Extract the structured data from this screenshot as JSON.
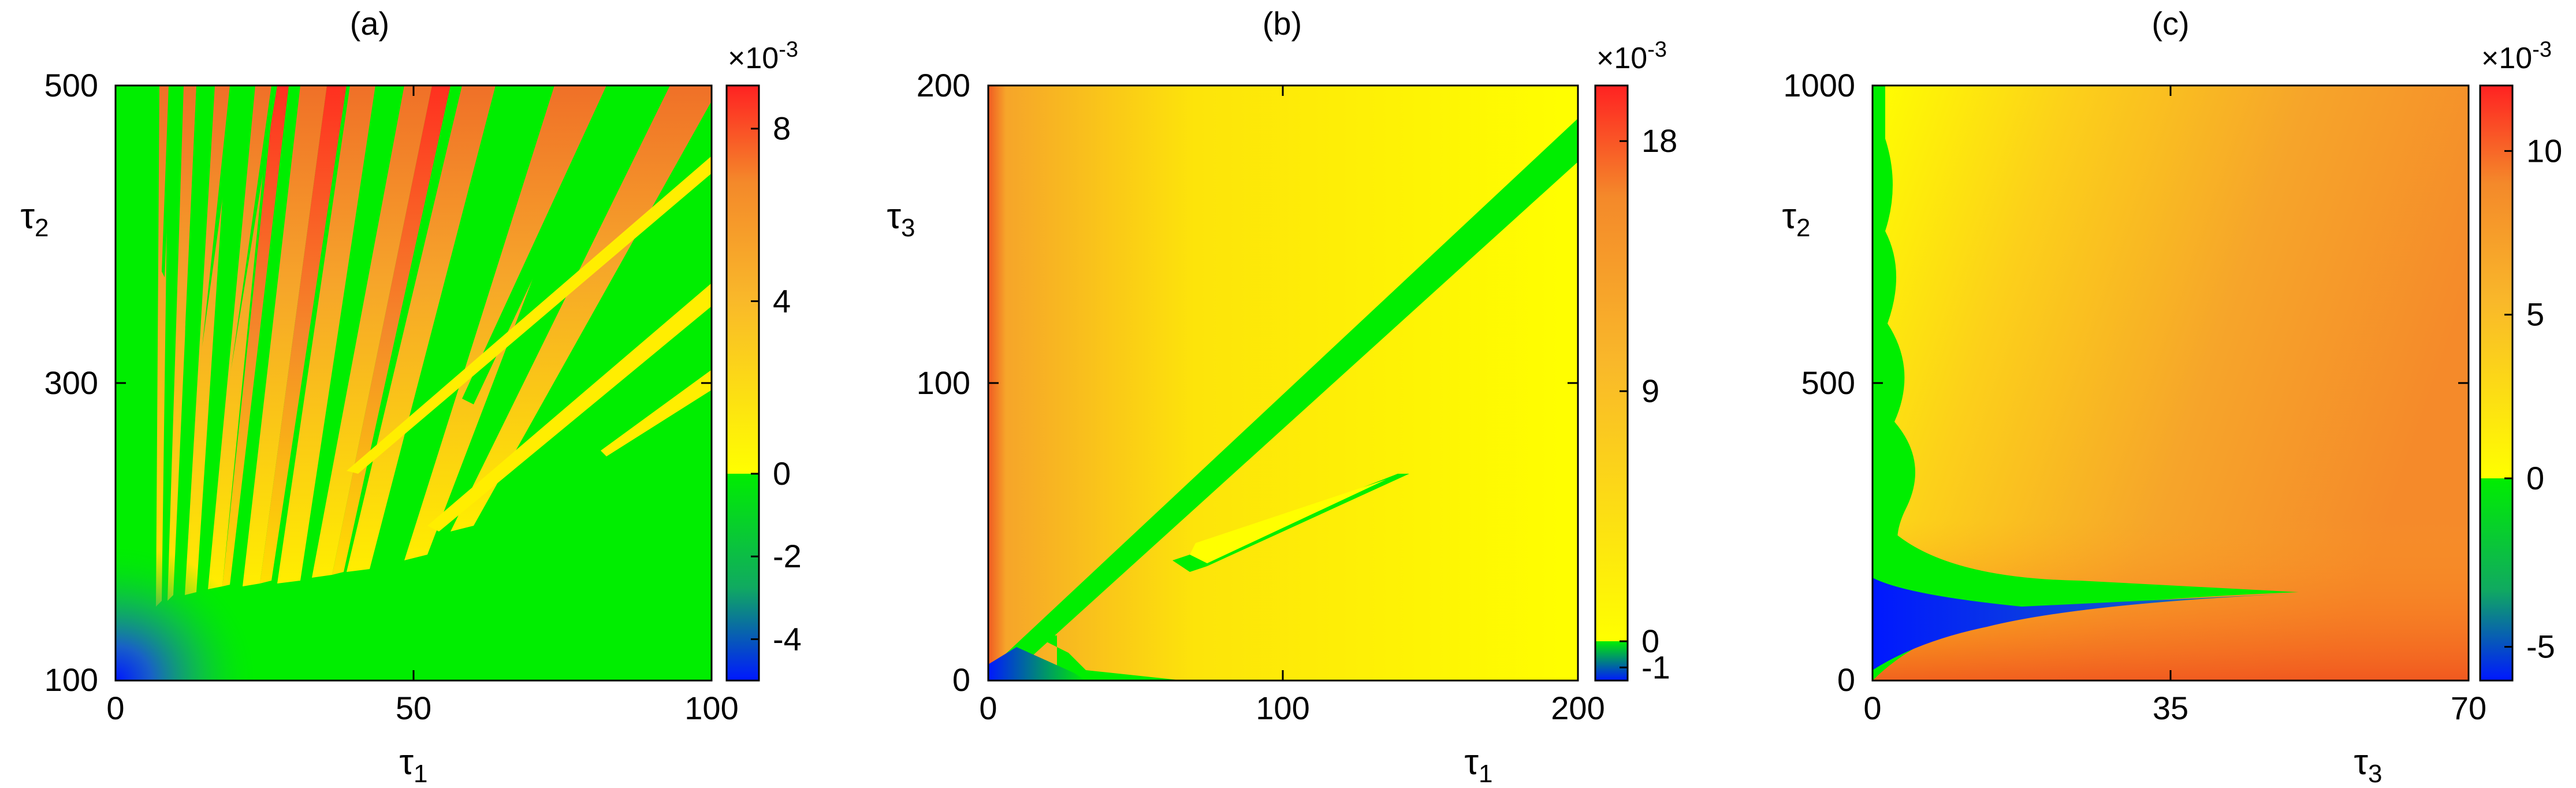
{
  "colors": {
    "red": "#ff3b2b",
    "orange": "#f4892a",
    "yellow": "#ffff00",
    "green": "#00ee00",
    "blue": "#0018ff"
  },
  "chart_data": [
    {
      "panel": "(a)",
      "type": "heatmap",
      "xlabel": "τ1",
      "ylabel": "τ2",
      "xlim": [
        0,
        100
      ],
      "ylim": [
        100,
        500
      ],
      "xticks": [
        "0",
        "50",
        "100"
      ],
      "yticks": [
        "100",
        "300",
        "500"
      ],
      "colorbar": {
        "multiplier": "×10-3",
        "range": [
          -5,
          9
        ],
        "zero_split": 0,
        "ticks": [
          "-4",
          "-2",
          "0",
          "4",
          "8"
        ],
        "tick_values": [
          -4,
          -2,
          0,
          4,
          8
        ]
      }
    },
    {
      "panel": "(b)",
      "type": "heatmap",
      "xlabel": "τ1",
      "ylabel": "τ3",
      "xlim": [
        0,
        200
      ],
      "ylim": [
        0,
        200
      ],
      "xticks": [
        "0",
        "100",
        "200"
      ],
      "yticks": [
        "0",
        "100",
        "200"
      ],
      "colorbar": {
        "multiplier": "×10-3",
        "range": [
          -1.5,
          20
        ],
        "zero_split": 0,
        "ticks": [
          "-1",
          "0",
          "9",
          "18"
        ],
        "tick_values": [
          -1,
          0,
          9,
          18
        ]
      }
    },
    {
      "panel": "(c)",
      "type": "heatmap",
      "xlabel": "τ3",
      "ylabel": "τ2",
      "xlim": [
        0,
        70
      ],
      "ylim": [
        0,
        1000
      ],
      "xticks": [
        "0",
        "35",
        "70"
      ],
      "yticks": [
        "0",
        "500",
        "1000"
      ],
      "colorbar": {
        "multiplier": "×10-3",
        "range": [
          -6,
          12
        ],
        "zero_split": 0,
        "ticks": [
          "-5",
          "0",
          "5",
          "10"
        ],
        "tick_values": [
          -5,
          0,
          5,
          10
        ]
      }
    }
  ]
}
